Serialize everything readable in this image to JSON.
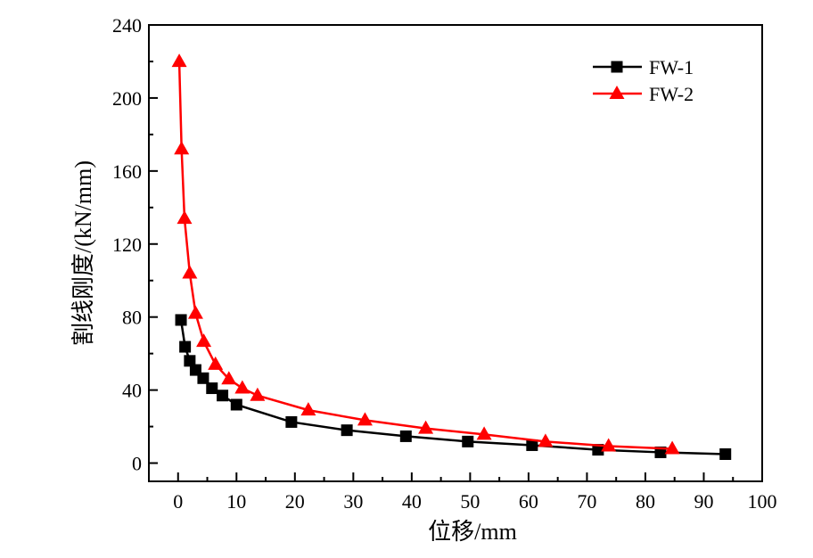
{
  "chart_data": {
    "type": "line",
    "title": "",
    "xlabel": "位移/mm",
    "ylabel": "割线刚度/(kN/mm)",
    "xlim": [
      -5,
      100
    ],
    "ylim": [
      -10,
      240
    ],
    "xticks": [
      0,
      10,
      20,
      30,
      40,
      50,
      60,
      70,
      80,
      90,
      100
    ],
    "yticks": [
      0,
      40,
      80,
      120,
      160,
      200,
      240
    ],
    "xtick_labels": [
      "0",
      "10",
      "20",
      "30",
      "40",
      "50",
      "60",
      "70",
      "80",
      "90",
      "100"
    ],
    "ytick_labels": [
      "0",
      "40",
      "80",
      "120",
      "160",
      "200",
      "240"
    ],
    "grid": false,
    "legend_position": "top-right",
    "series": [
      {
        "name": "FW-1",
        "color": "#000000",
        "marker": "square",
        "x": [
          0.5,
          1.2,
          2.0,
          3.0,
          4.3,
          5.8,
          7.6,
          10.0,
          19.4,
          28.9,
          39.0,
          49.6,
          60.6,
          71.9,
          82.6,
          93.7
        ],
        "y": [
          78.4,
          63.7,
          56.0,
          51.0,
          46.5,
          41.0,
          37.0,
          32.0,
          22.5,
          18.0,
          14.7,
          11.8,
          9.8,
          7.3,
          5.9,
          4.9
        ]
      },
      {
        "name": "FW-2",
        "color": "#ff0000",
        "marker": "triangle",
        "x": [
          0.2,
          0.6,
          1.1,
          2.0,
          3.0,
          4.4,
          6.4,
          8.7,
          11.0,
          13.6,
          22.3,
          32.0,
          42.4,
          52.4,
          62.9,
          73.7,
          84.6
        ],
        "y": [
          219.9,
          172.0,
          134.0,
          104.0,
          82.0,
          66.6,
          54.0,
          46.0,
          41.0,
          37.0,
          29.0,
          23.5,
          19.0,
          15.7,
          11.8,
          9.3,
          7.8
        ]
      }
    ]
  }
}
